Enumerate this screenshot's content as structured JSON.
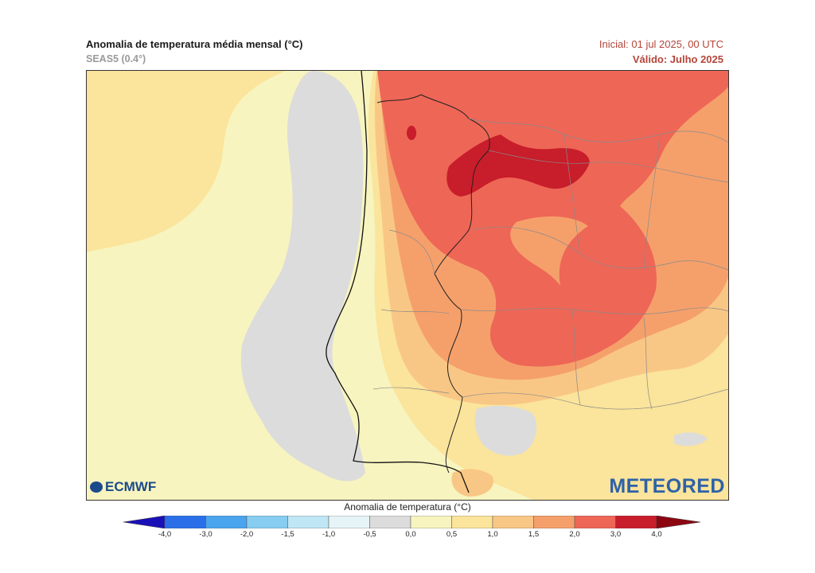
{
  "header": {
    "title": "Anomalia de temperatura média mensal (°C)",
    "subtitle": "SEAS5 (0.4°)",
    "initial": "Inicial: 01 jul 2025, 00 UTC",
    "valid": "Válido: Julho 2025"
  },
  "logos": {
    "left": "ECMWF",
    "right": "METEORED"
  },
  "legend": {
    "label": "Anomalia de temperatura (°C)",
    "ticks": [
      "-4,0",
      "-3,0",
      "-2,0",
      "-1,5",
      "-1,0",
      "-0,5",
      "0,0",
      "0,5",
      "1,0",
      "1,5",
      "2,0",
      "3,0",
      "4,0"
    ],
    "colors": [
      "#1d1fd6",
      "#2a6fe8",
      "#4aa4ee",
      "#86cdf1",
      "#bfe6f5",
      "#e7f4f7",
      "#dcdcdc",
      "#f7f4bf",
      "#fbe49b",
      "#f9c785",
      "#f5a06b",
      "#ee6656",
      "#c81d2a"
    ],
    "under_color": "#1a10b8",
    "over_color": "#8c0612"
  }
}
